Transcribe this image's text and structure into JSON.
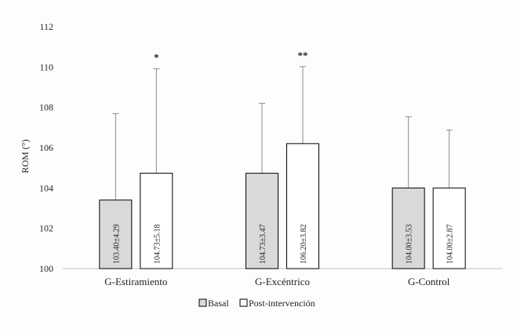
{
  "chart_data": {
    "type": "bar",
    "title": "",
    "xlabel": "",
    "ylabel": "ROM (°)",
    "ylim": [
      100,
      112
    ],
    "yticks": [
      100,
      102,
      104,
      106,
      108,
      110,
      112
    ],
    "grid": false,
    "legend_position": "bottom-center",
    "categories": [
      "G-Estiramiento",
      "G-Excéntrico",
      "G-Control"
    ],
    "series": [
      {
        "name": "Basal",
        "color": "#d9d9d9",
        "values": [
          103.4,
          104.73,
          104.0
        ],
        "error_plus": [
          4.29,
          3.47,
          3.53
        ],
        "labels": [
          "103.40±4.29",
          "104.73±3.47",
          "104.00±3.53"
        ]
      },
      {
        "name": "Post-intervención",
        "color": "#ffffff",
        "values": [
          104.73,
          106.2,
          104.0
        ],
        "error_plus": [
          5.18,
          3.82,
          2.87
        ],
        "labels": [
          "104.73±5.18",
          "106.20±3.82",
          "104.00±2.87"
        ]
      }
    ],
    "annotations": [
      {
        "category": "G-Estiramiento",
        "series": "Post-intervención",
        "text": "*"
      },
      {
        "category": "G-Excéntrico",
        "series": "Post-intervención",
        "text": "**"
      }
    ]
  }
}
